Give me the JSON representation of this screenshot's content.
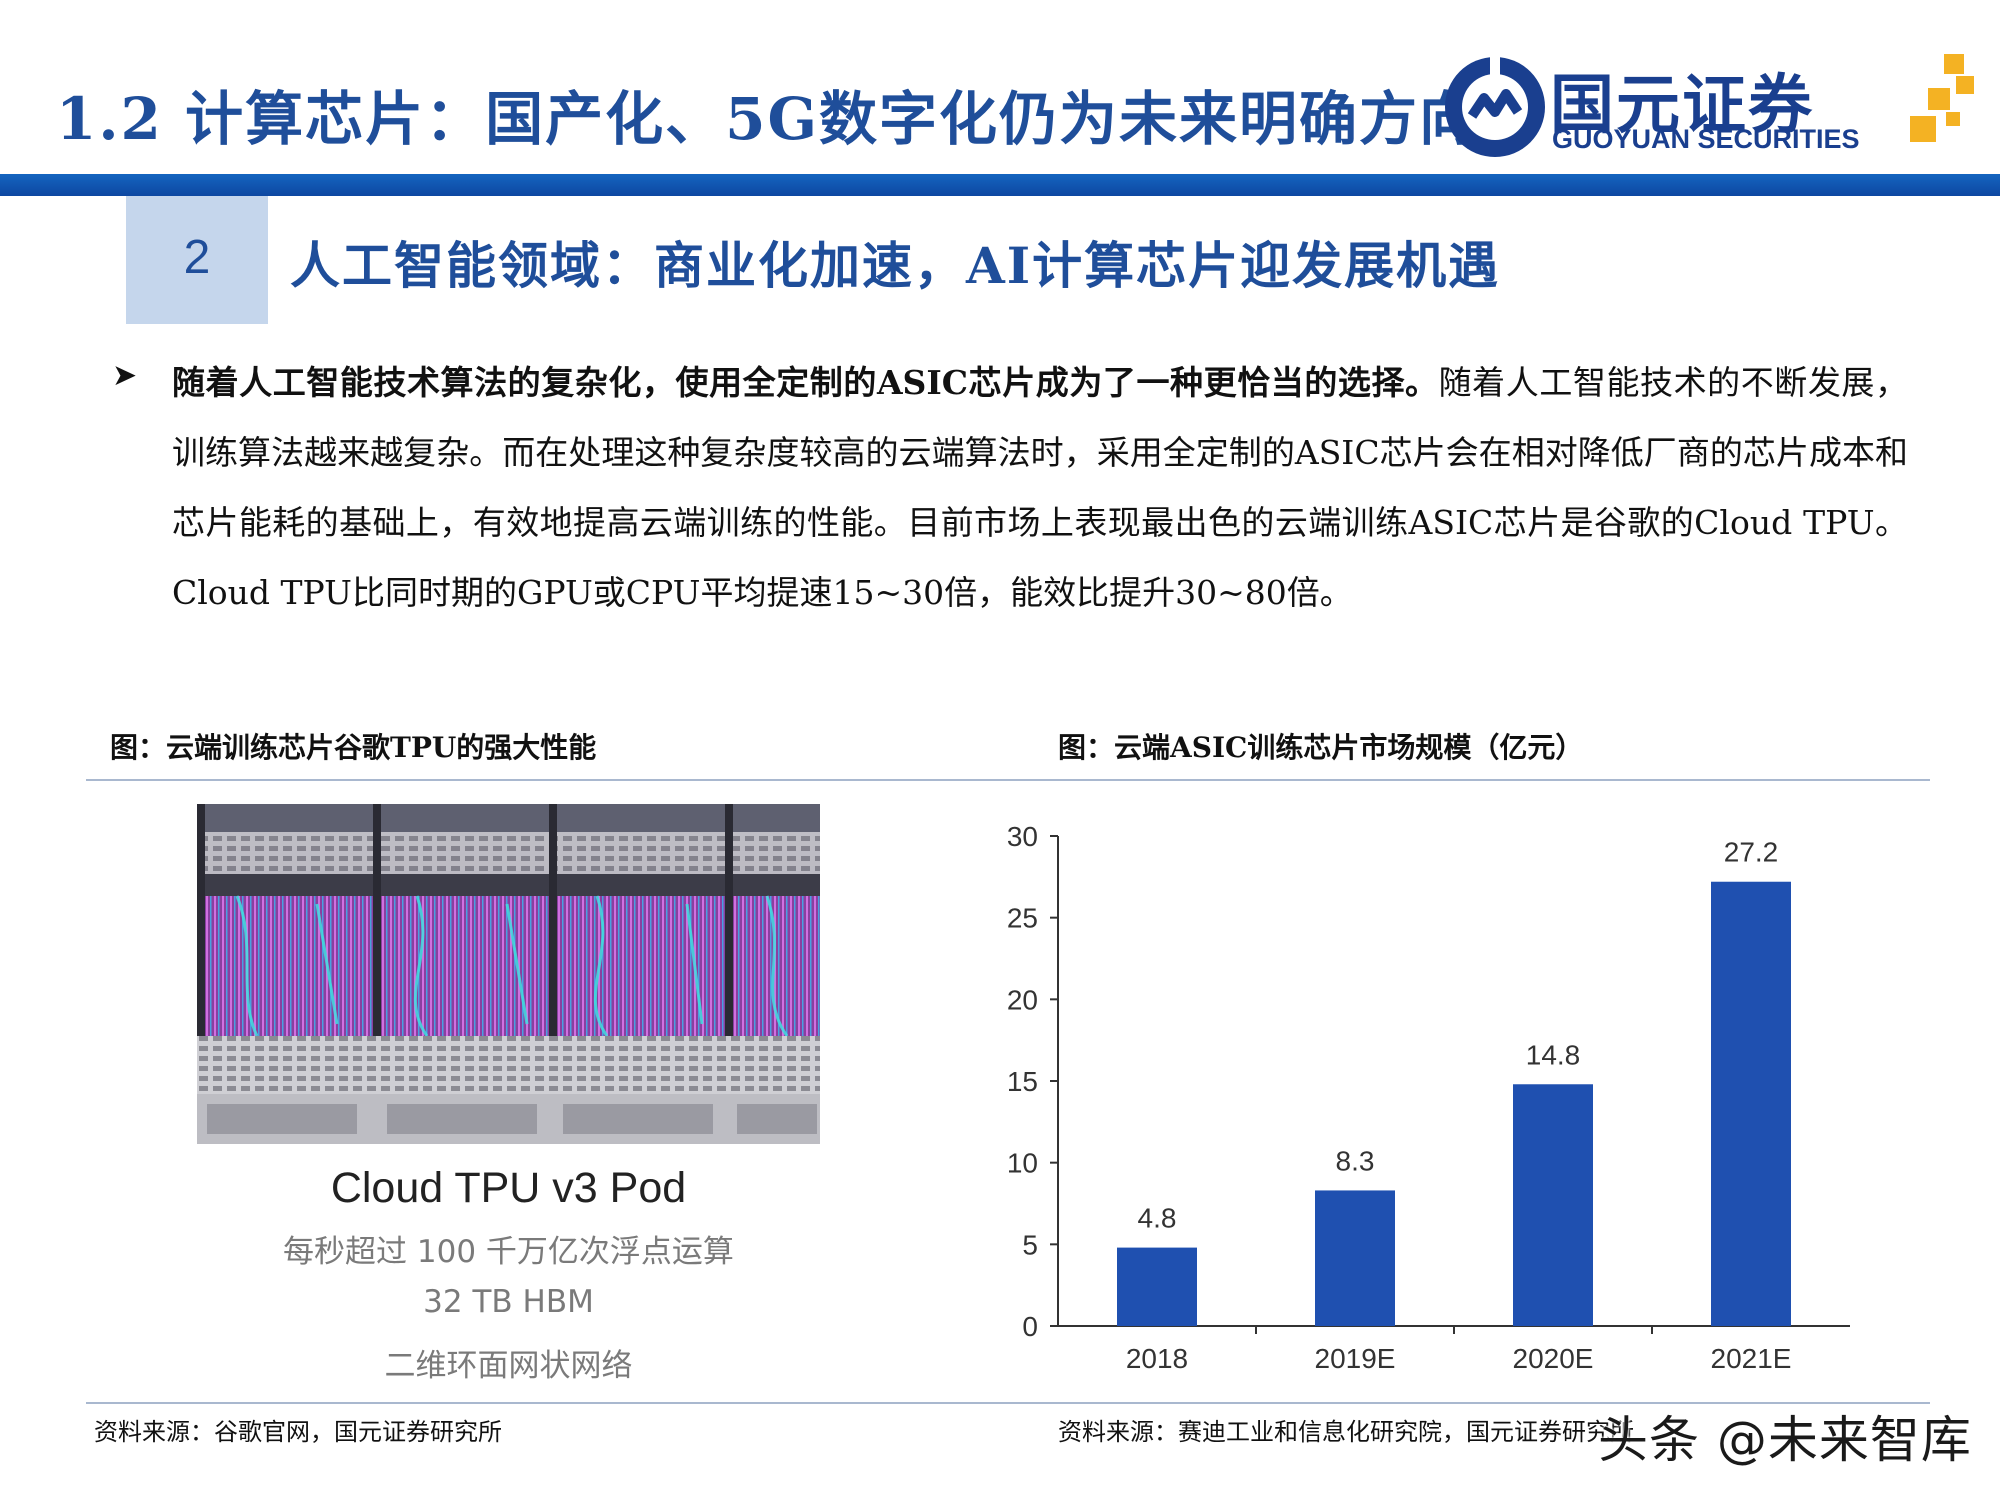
{
  "header": {
    "title": "1.2 计算芯片：国产化、5G数字化仍为未来明确方向",
    "logo": {
      "cn": "国元证券",
      "en": "GUOYUAN SECURITIES",
      "brand_color": "#1a3f8f",
      "accent_color": "#f4b223",
      "emblem_icon": "guoyuan-emblem-icon"
    }
  },
  "section": {
    "number": "2",
    "title": "人工智能领域：商业化加速，AI计算芯片迎发展机遇"
  },
  "body": {
    "bullet_icon": "arrow-right-bullet-icon",
    "lead": "随着人工智能技术算法的复杂化，使用全定制的ASIC芯片成为了一种更恰当的选择。",
    "text": "随着人工智能技术的不断发展，训练算法越来越复杂。而在处理这种复杂度较高的云端算法时，采用全定制的ASIC芯片会在相对降低厂商的芯片成本和芯片能耗的基础上，有效地提高云端训练的性能。目前市场上表现最出色的云端训练ASIC芯片是谷歌的Cloud TPU。Cloud TPU比同时期的GPU或CPU平均提速15~30倍，能效比提升30~80倍。"
  },
  "figure_left": {
    "caption": "图：云端训练芯片谷歌TPU的强大性能",
    "photo_title": "Cloud TPU v3 Pod",
    "photo_lines": [
      "每秒超过 100 千万亿次浮点运算",
      "32 TB HBM",
      "二维环面网状网络"
    ],
    "source": "资料来源：谷歌官网，国元证券研究所"
  },
  "figure_right": {
    "caption": "图：云端ASIC训练芯片市场规模（亿元）",
    "source": "资料来源：赛迪工业和信息化研究院，国元证券研究所"
  },
  "chart_data": {
    "type": "bar",
    "categories": [
      "2018",
      "2019E",
      "2020E",
      "2021E"
    ],
    "values": [
      4.8,
      8.3,
      14.8,
      27.2
    ],
    "data_labels": [
      "4.8",
      "8.3",
      "14.8",
      "27.2"
    ],
    "yticks": [
      "0",
      "5",
      "10",
      "15",
      "20",
      "25",
      "30"
    ],
    "ylim": [
      0,
      30
    ],
    "title": "",
    "xlabel": "",
    "ylabel": "",
    "grid": false,
    "bar_color": "#1f50b0"
  },
  "watermark": "头条 @未来智库",
  "colors": {
    "title_blue": "#1f4e9a",
    "header_bar": "#1565c0",
    "section_box": "#c5d6ec"
  }
}
